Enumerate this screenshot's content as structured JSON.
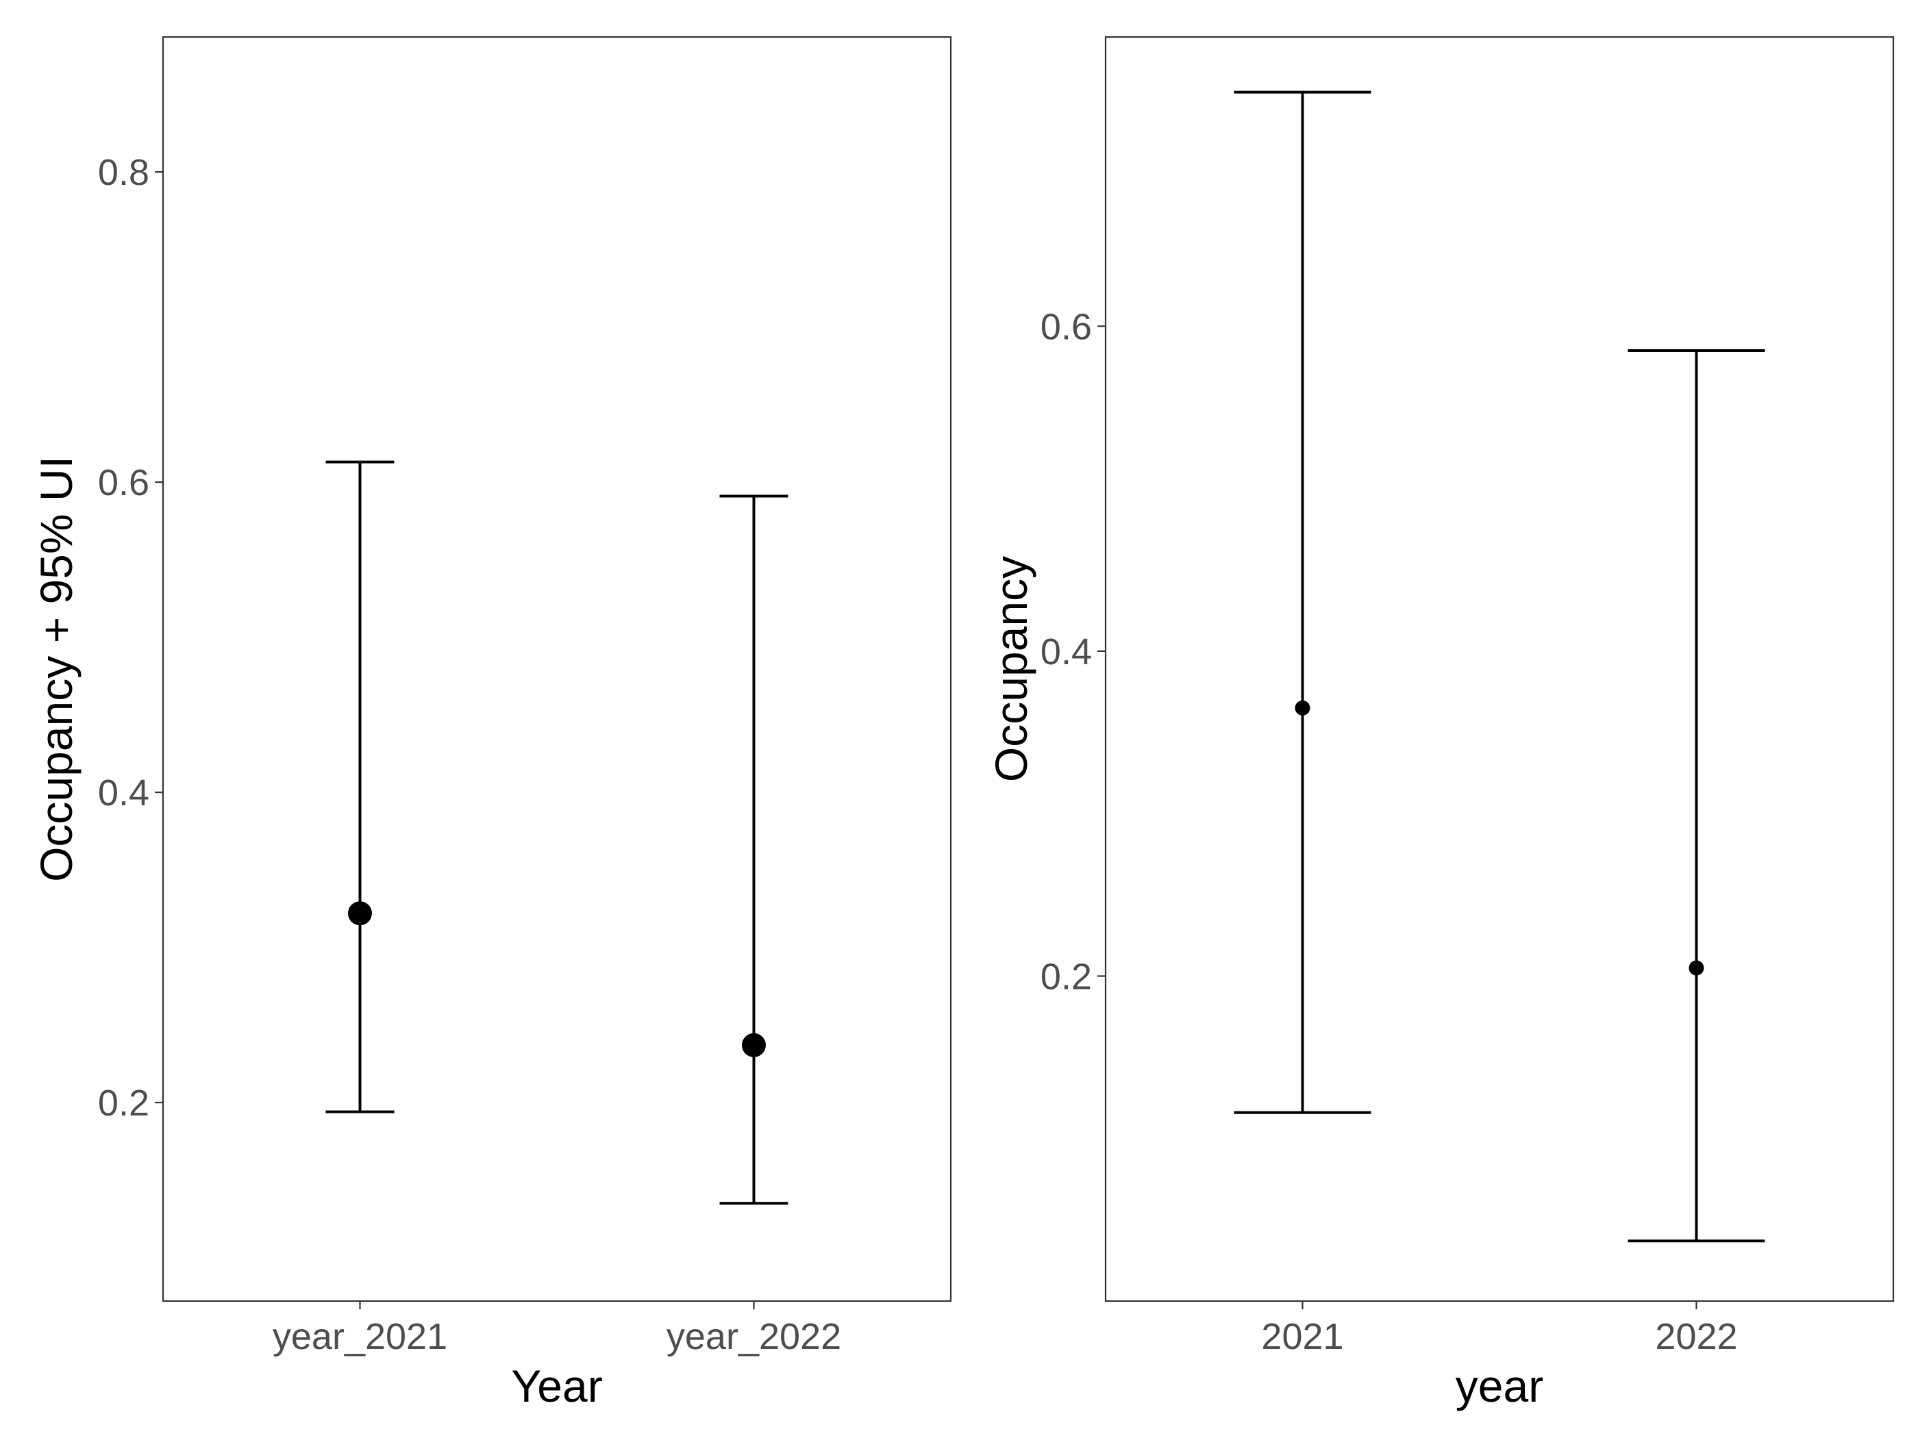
{
  "chart_data": [
    {
      "type": "errorbar",
      "title": "",
      "xlabel": "Year",
      "ylabel": "Occupancy + 95% UI",
      "categories": [
        "year_2021",
        "year_2022"
      ],
      "series": [
        {
          "values": [
            0.322,
            0.237
          ],
          "lower": [
            0.194,
            0.135
          ],
          "upper": [
            0.613,
            0.591
          ]
        }
      ],
      "ylim": [
        0.072,
        0.887
      ],
      "yticks": [
        0.2,
        0.4,
        0.6,
        0.8
      ],
      "ytick_labels": [
        "0.2",
        "0.4",
        "0.6",
        "0.8"
      ],
      "grid": false,
      "point_style": "large"
    },
    {
      "type": "errorbar",
      "title": "",
      "xlabel": "year",
      "ylabel": "Occupancy",
      "categories": [
        "2021",
        "2022"
      ],
      "series": [
        {
          "values": [
            0.365,
            0.205
          ],
          "lower": [
            0.116,
            0.037
          ],
          "upper": [
            0.744,
            0.585
          ]
        }
      ],
      "ylim": [
        0.0,
        0.778
      ],
      "yticks": [
        0.2,
        0.4,
        0.6
      ],
      "ytick_labels": [
        "0.2",
        "0.4",
        "0.6"
      ],
      "grid": false,
      "point_style": "small"
    }
  ]
}
